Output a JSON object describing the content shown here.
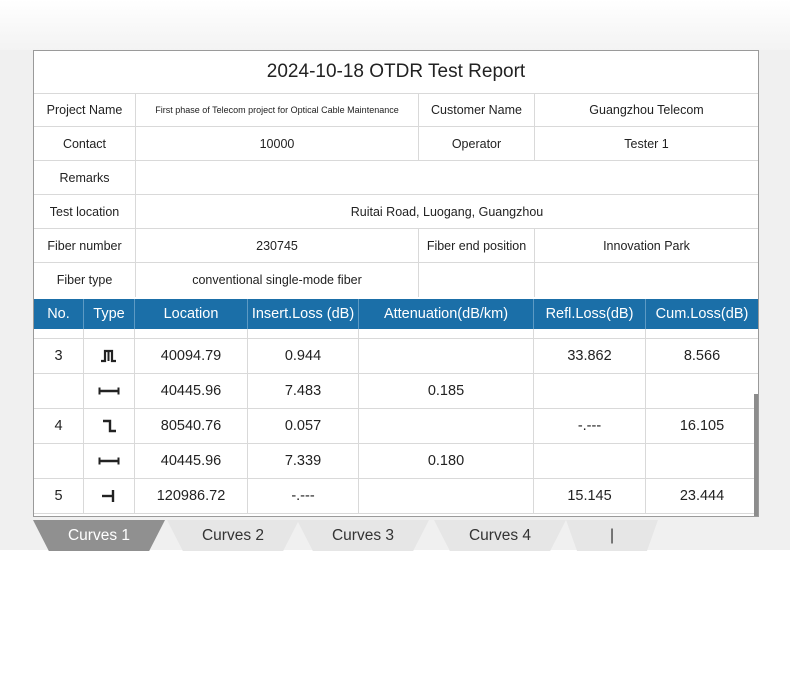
{
  "report": {
    "title": "2024-10-18 OTDR Test Report",
    "info": {
      "project_name_label": "Project Name",
      "project_name_value": "First phase of Telecom project for Optical Cable Maintenance",
      "customer_name_label": "Customer Name",
      "customer_name_value": "Guangzhou Telecom",
      "contact_label": "Contact",
      "contact_value": "10000",
      "operator_label": "Operator",
      "operator_value": "Tester 1",
      "remarks_label": "Remarks",
      "remarks_value": "",
      "test_location_label": "Test location",
      "test_location_value": "Ruitai Road, Luogang, Guangzhou",
      "fiber_number_label": "Fiber number",
      "fiber_number_value": "230745",
      "fiber_end_label": "Fiber end position",
      "fiber_end_value": "Innovation Park",
      "fiber_type_label": "Fiber type",
      "fiber_type_value": "conventional single-mode fiber"
    }
  },
  "table": {
    "headers": [
      "No.",
      "Type",
      "Location",
      "Insert.Loss (dB)",
      "Attenuation(dB/km)",
      "Refl.Loss(dB)",
      "Cum.Loss(dB)"
    ],
    "rows": [
      {
        "no": "3",
        "type_icon": "reflective-event-icon",
        "location": "40094.79",
        "insert_loss": "0.944",
        "attenuation": "",
        "refl_loss": "33.862",
        "cum_loss": "8.566"
      },
      {
        "no": "",
        "type_icon": "fiber-section-icon",
        "location": "40445.96",
        "insert_loss": "7.483",
        "attenuation": "0.185",
        "refl_loss": "",
        "cum_loss": ""
      },
      {
        "no": "4",
        "type_icon": "non-reflective-event-icon",
        "location": "80540.76",
        "insert_loss": "0.057",
        "attenuation": "",
        "refl_loss": "-.---",
        "cum_loss": "16.105"
      },
      {
        "no": "",
        "type_icon": "fiber-section-icon",
        "location": "40445.96",
        "insert_loss": "7.339",
        "attenuation": "0.180",
        "refl_loss": "",
        "cum_loss": ""
      },
      {
        "no": "5",
        "type_icon": "fiber-end-icon",
        "location": "120986.72",
        "insert_loss": "-.---",
        "attenuation": "",
        "refl_loss": "15.145",
        "cum_loss": "23.444"
      }
    ]
  },
  "tabs": [
    {
      "label": "Curves 1",
      "active": true
    },
    {
      "label": "Curves 2",
      "active": false
    },
    {
      "label": "Curves 3",
      "active": false
    },
    {
      "label": "Curves 4",
      "active": false
    },
    {
      "label": "|",
      "active": false
    }
  ],
  "colors": {
    "header_bg": "#1b6fa8",
    "active_tab": "#909090",
    "inactive_tab": "#e6e6e6"
  }
}
